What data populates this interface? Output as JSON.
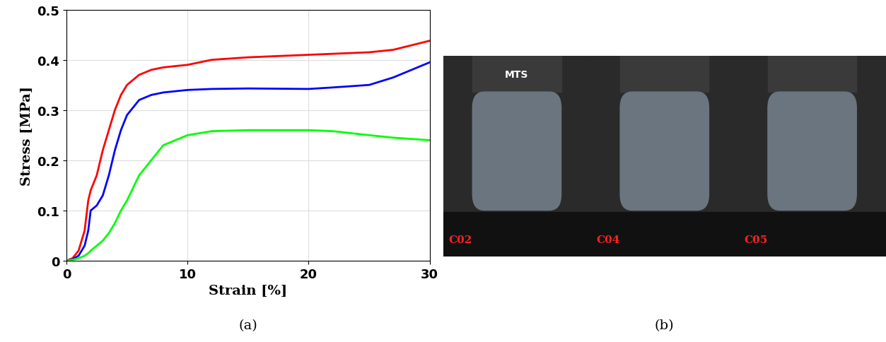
{
  "chart_data": {
    "type": "line",
    "x_label": "Strain [%]",
    "y_label": "Stress [MPa]",
    "x": [
      0,
      0.5,
      1,
      1.5,
      1.8,
      2,
      2.5,
      3,
      3.5,
      4,
      4.5,
      5,
      6,
      7,
      8,
      10,
      12,
      15,
      20,
      22,
      25,
      27,
      30
    ],
    "series": [
      {
        "color": "#ff0000",
        "values": [
          0,
          0.005,
          0.02,
          0.06,
          0.12,
          0.14,
          0.17,
          0.22,
          0.26,
          0.3,
          0.33,
          0.35,
          0.37,
          0.38,
          0.385,
          0.39,
          0.4,
          0.405,
          0.41,
          0.412,
          0.415,
          0.42,
          0.438
        ]
      },
      {
        "color": "#0000ff",
        "values": [
          0,
          0.003,
          0.01,
          0.03,
          0.06,
          0.1,
          0.11,
          0.13,
          0.17,
          0.22,
          0.26,
          0.29,
          0.32,
          0.33,
          0.335,
          0.34,
          0.342,
          0.343,
          0.342,
          0.345,
          0.35,
          0.365,
          0.395
        ]
      },
      {
        "color": "#00ff00",
        "values": [
          0,
          0.002,
          0.005,
          0.01,
          0.015,
          0.02,
          0.03,
          0.04,
          0.055,
          0.075,
          0.1,
          0.12,
          0.17,
          0.2,
          0.23,
          0.25,
          0.258,
          0.26,
          0.26,
          0.258,
          0.25,
          0.245,
          0.24
        ]
      }
    ],
    "xlim": [
      0,
      30
    ],
    "xticks": [
      0,
      10,
      20,
      30
    ],
    "ylim": [
      0,
      0.5
    ],
    "yticks": [
      0,
      0.1,
      0.2,
      0.3,
      0.4,
      0.5
    ],
    "grid": true
  },
  "captions": [
    "(a)",
    "(b)"
  ],
  "photos": [
    {
      "label": "C02",
      "machine_text": "MTS"
    },
    {
      "label": "C04"
    },
    {
      "label": "C05"
    }
  ]
}
